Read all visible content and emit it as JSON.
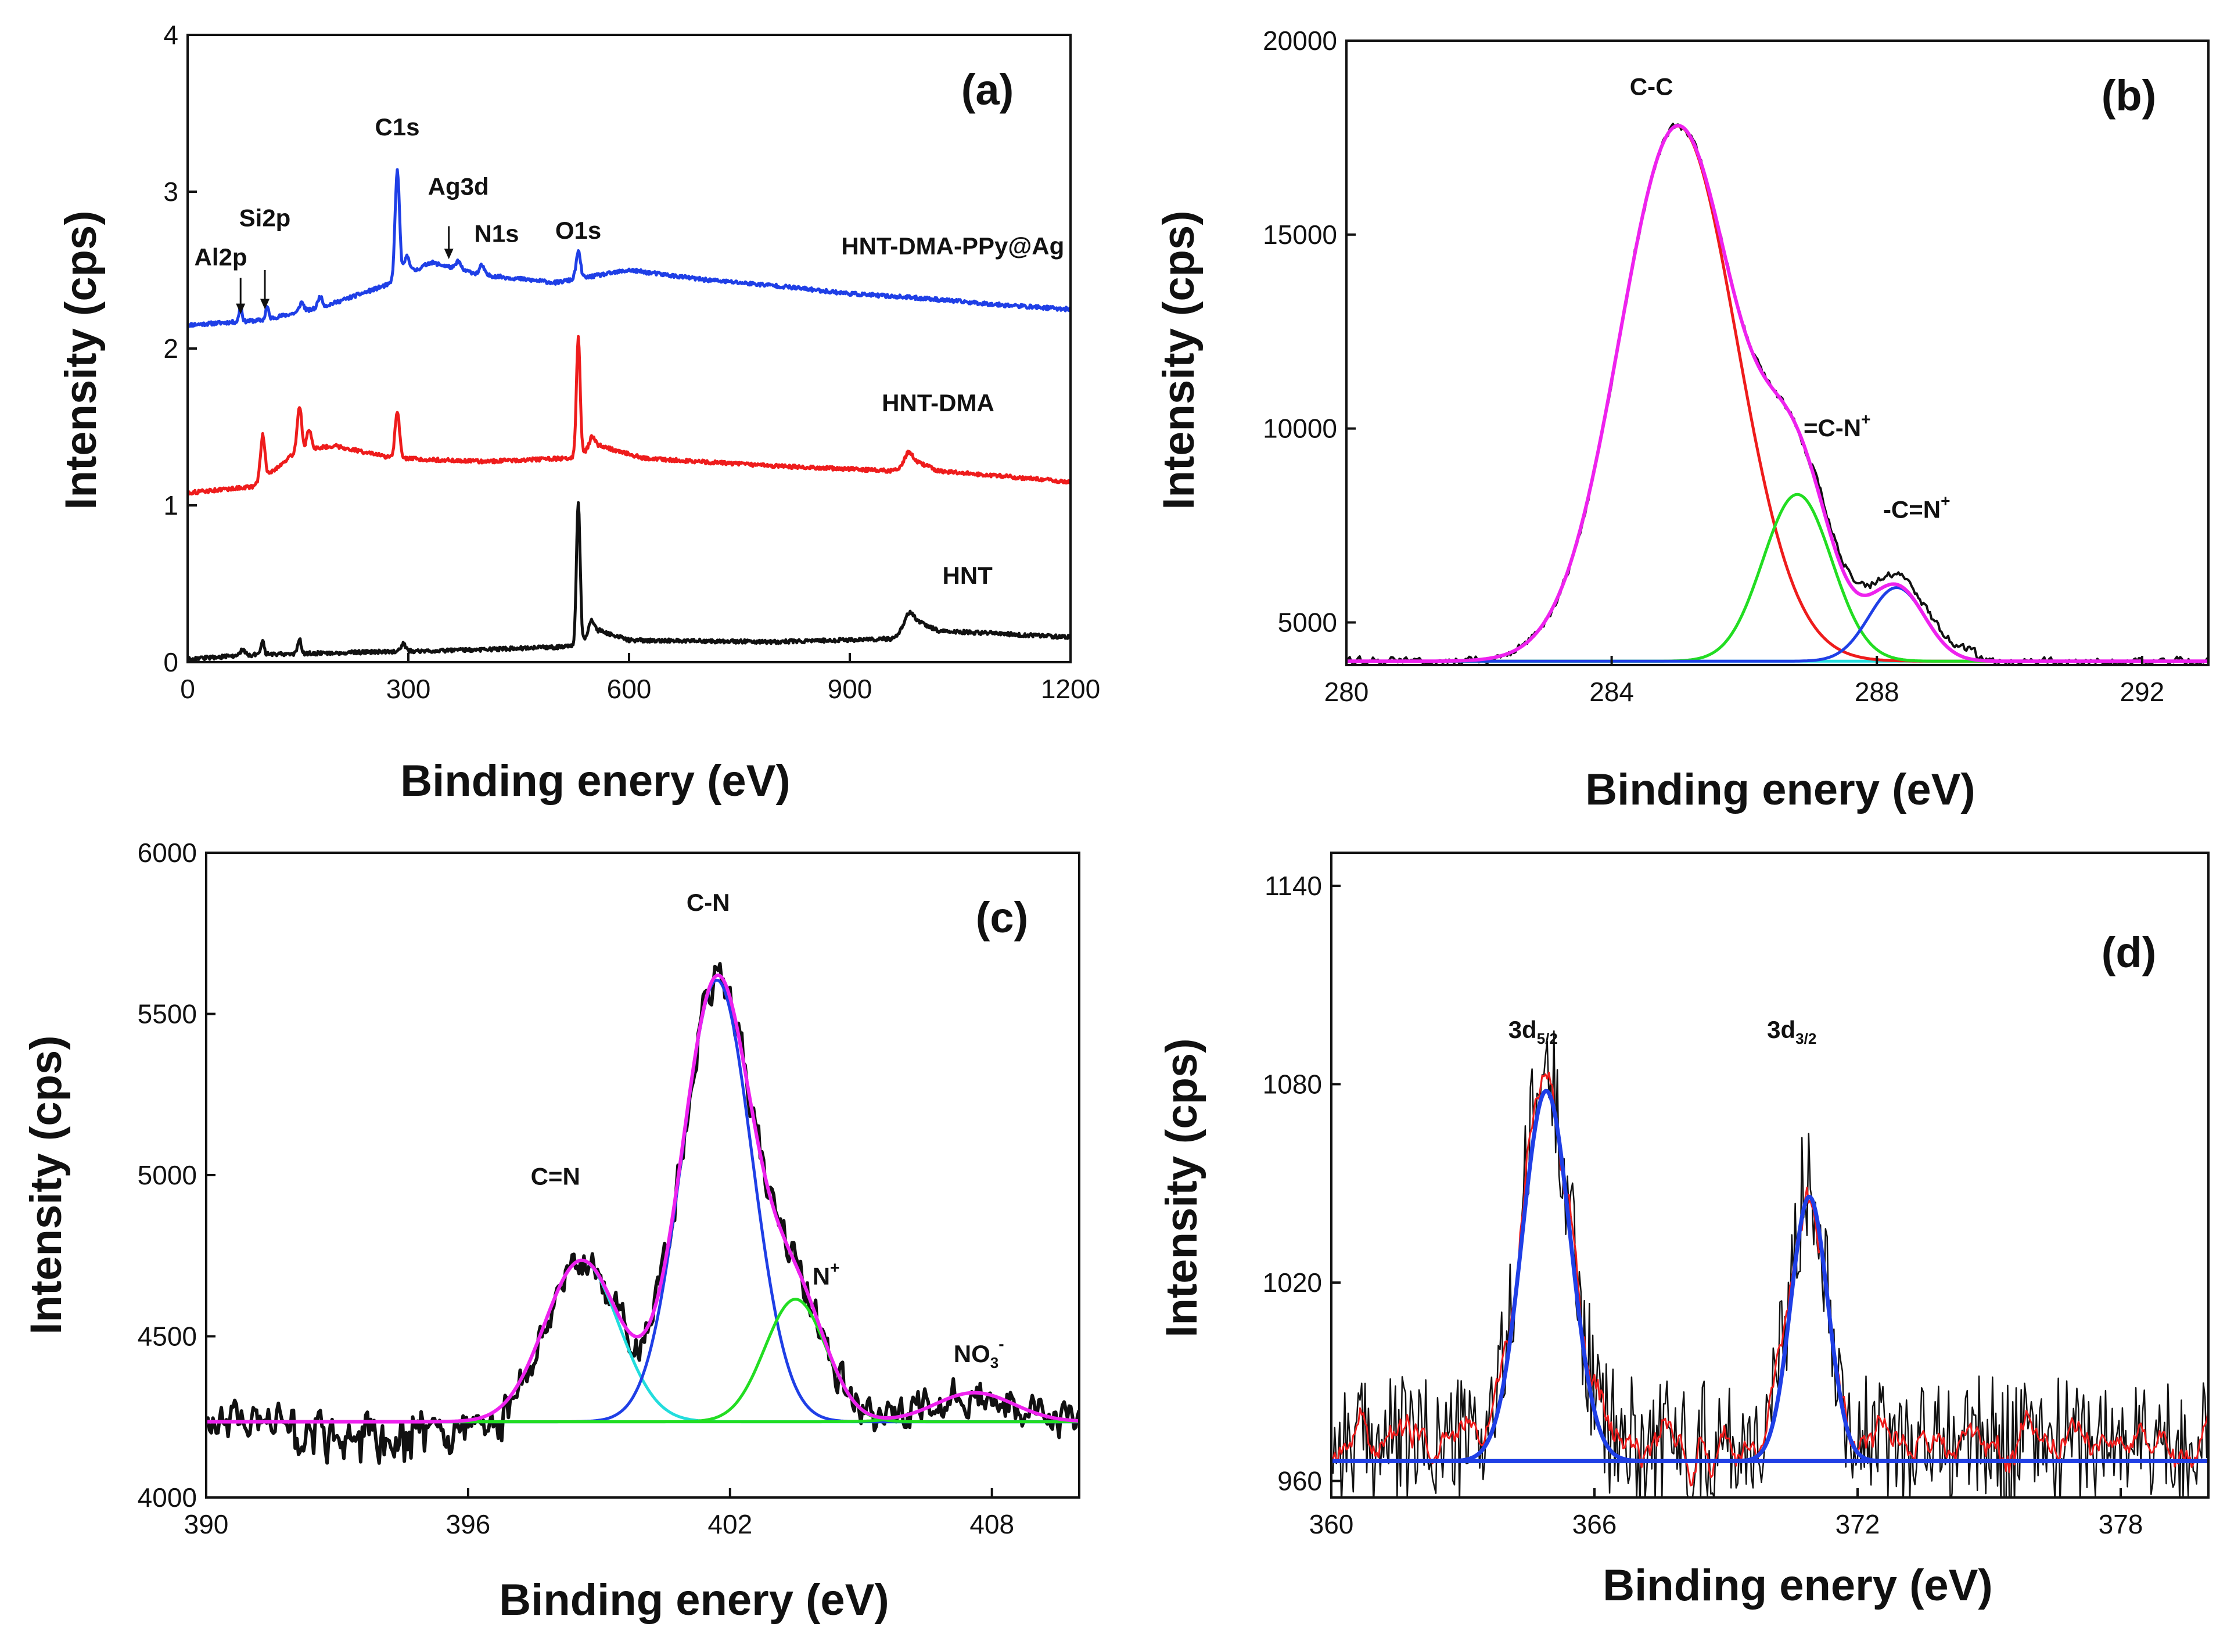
{
  "chart_data": [
    {
      "id": "a",
      "type": "line",
      "panel_label": "(a)",
      "xlabel": "Binding enery (eV)",
      "ylabel": "Intensity (cps)",
      "xlim": [
        0,
        1200
      ],
      "ylim": [
        0,
        4
      ],
      "xticks": [
        0,
        300,
        600,
        900,
        1200
      ],
      "xtick_labels": [
        "0",
        "300",
        "600",
        "900",
        "1200"
      ],
      "yticks": [
        0,
        1,
        2,
        3,
        4
      ],
      "ytick_labels": [
        "0",
        "1",
        "2",
        "3",
        "4"
      ],
      "series": [
        {
          "name": "HNT-DMA-PPy@Ag",
          "color": "#1f3fe6",
          "baseline": [
            [
              0,
              2.15
            ],
            [
              100,
              2.18
            ],
            [
              180,
              2.26
            ],
            [
              280,
              2.42
            ],
            [
              330,
              2.55
            ],
            [
              400,
              2.47
            ],
            [
              500,
              2.42
            ],
            [
              600,
              2.5
            ],
            [
              700,
              2.44
            ],
            [
              800,
              2.4
            ],
            [
              900,
              2.35
            ],
            [
              1000,
              2.32
            ],
            [
              1100,
              2.28
            ],
            [
              1200,
              2.25
            ]
          ],
          "peaks": [
            [
              72,
              0.1,
              2
            ],
            [
              108,
              0.08,
              2
            ],
            [
              155,
              0.06,
              3
            ],
            [
              180,
              0.07,
              3
            ],
            [
              285,
              0.7,
              3
            ],
            [
              298,
              0.12,
              4
            ],
            [
              368,
              0.05,
              3
            ],
            [
              400,
              0.06,
              3
            ],
            [
              531,
              0.17,
              3
            ]
          ],
          "noise": 0.012
        },
        {
          "name": "HNT-DMA",
          "color": "#ee1c1c",
          "baseline": [
            [
              0,
              1.08
            ],
            [
              90,
              1.12
            ],
            [
              150,
              1.35
            ],
            [
              200,
              1.38
            ],
            [
              280,
              1.3
            ],
            [
              400,
              1.28
            ],
            [
              520,
              1.3
            ],
            [
              560,
              1.38
            ],
            [
              620,
              1.3
            ],
            [
              800,
              1.25
            ],
            [
              960,
              1.22
            ],
            [
              990,
              1.28
            ],
            [
              1020,
              1.22
            ],
            [
              1200,
              1.15
            ]
          ],
          "peaks": [
            [
              102,
              0.28,
              3
            ],
            [
              152,
              0.28,
              3
            ],
            [
              165,
              0.12,
              3
            ],
            [
              285,
              0.3,
              3
            ],
            [
              531,
              0.75,
              2.5
            ],
            [
              550,
              0.08,
              4
            ],
            [
              980,
              0.08,
              5
            ]
          ],
          "noise": 0.012
        },
        {
          "name": "HNT",
          "color": "#111111",
          "baseline": [
            [
              0,
              0.02
            ],
            [
              100,
              0.05
            ],
            [
              200,
              0.06
            ],
            [
              400,
              0.08
            ],
            [
              525,
              0.1
            ],
            [
              560,
              0.2
            ],
            [
              600,
              0.14
            ],
            [
              800,
              0.13
            ],
            [
              960,
              0.15
            ],
            [
              985,
              0.28
            ],
            [
              1020,
              0.2
            ],
            [
              1200,
              0.16
            ]
          ],
          "peaks": [
            [
              75,
              0.04,
              3
            ],
            [
              102,
              0.08,
              2
            ],
            [
              152,
              0.1,
              2
            ],
            [
              293,
              0.05,
              3
            ],
            [
              531,
              0.9,
              2.5
            ],
            [
              549,
              0.1,
              4
            ],
            [
              980,
              0.06,
              5
            ]
          ],
          "noise": 0.012
        }
      ],
      "annotations": [
        {
          "text": "C1s",
          "x": 285,
          "y": 3.36
        },
        {
          "text": "O1s",
          "x": 531,
          "y": 2.7
        },
        {
          "text": "Ag3d",
          "x": 368,
          "y": 2.98
        },
        {
          "text": "N1s",
          "x": 420,
          "y": 2.68
        },
        {
          "text": "Si2p",
          "x": 105,
          "y": 2.78
        },
        {
          "text": "Al2p",
          "x": 45,
          "y": 2.53
        },
        {
          "text": "HNT-DMA-PPy@Ag",
          "x": 1040,
          "y": 2.6
        },
        {
          "text": "HNT-DMA",
          "x": 1020,
          "y": 1.6
        },
        {
          "text": "HNT",
          "x": 1060,
          "y": 0.5
        }
      ],
      "arrows": [
        {
          "x": 72,
          "y_from": 2.45,
          "y_to": 2.22
        },
        {
          "x": 105,
          "y_from": 2.5,
          "y_to": 2.25
        },
        {
          "x": 355,
          "y_from": 2.78,
          "y_to": 2.57
        }
      ]
    },
    {
      "id": "b",
      "type": "line",
      "panel_label": "(b)",
      "xlabel": "Binding enery (eV)",
      "ylabel": "Intensity (cps)",
      "xlim": [
        280,
        293
      ],
      "ylim": [
        3900,
        20000
      ],
      "xticks": [
        280,
        284,
        288,
        292
      ],
      "xtick_labels": [
        "280",
        "284",
        "288",
        "292"
      ],
      "yticks": [
        5000,
        10000,
        15000,
        20000
      ],
      "ytick_labels": [
        "5000",
        "10000",
        "15000",
        "20000"
      ],
      "baseline_value": 4000,
      "components": [
        {
          "name": "C-C",
          "center": 285.0,
          "amplitude": 13800,
          "sigma": 0.88,
          "color": "#ee1c1c"
        },
        {
          "name": "=C-N+",
          "center": 286.8,
          "amplitude": 4300,
          "sigma": 0.52,
          "color": "#22dd22"
        },
        {
          "name": "-C=N+",
          "center": 288.3,
          "amplitude": 1900,
          "sigma": 0.42,
          "color": "#1f3fe6"
        }
      ],
      "baseline_color": "#22dddd",
      "envelope_color": "#ee22ee",
      "raw_color": "#111111",
      "raw_noise": 90,
      "annotations": [
        {
          "text": "C-C",
          "x": 284.6,
          "y": 18600
        },
        {
          "text": "=C-N",
          "sup": "+",
          "x": 287.4,
          "y": 9800
        },
        {
          "text": "-C=N",
          "sup": "+",
          "x": 288.6,
          "y": 7700
        }
      ]
    },
    {
      "id": "c",
      "type": "line",
      "panel_label": "(c)",
      "xlabel": "Binding enery (eV)",
      "ylabel": "Intensity (cps)",
      "xlim": [
        390,
        410
      ],
      "ylim": [
        4000,
        6000
      ],
      "xticks": [
        390,
        396,
        402,
        408
      ],
      "xtick_labels": [
        "390",
        "396",
        "402",
        "408"
      ],
      "yticks": [
        4000,
        4500,
        5000,
        5500,
        6000
      ],
      "ytick_labels": [
        "4000",
        "4500",
        "5000",
        "5500",
        "6000"
      ],
      "baseline_value": 4235,
      "components": [
        {
          "name": "C=N",
          "center": 398.6,
          "amplitude": 500,
          "sigma": 0.85,
          "color": "#22dddd"
        },
        {
          "name": "C-N",
          "center": 401.7,
          "amplitude": 1370,
          "sigma": 0.8,
          "color": "#1f3fe6"
        },
        {
          "name": "N+",
          "center": 403.5,
          "amplitude": 380,
          "sigma": 0.7,
          "color": "#22dd22"
        },
        {
          "name": "NO3-",
          "center": 407.6,
          "amplitude": 90,
          "sigma": 0.9,
          "color": "#22dd22"
        }
      ],
      "baseline_color": "#22dddd",
      "envelope_color": "#ee22ee",
      "raw_color": "#111111",
      "raw_noise": 50,
      "annotations": [
        {
          "text": "C=N",
          "x": 398.0,
          "y": 4970
        },
        {
          "text": "C-N",
          "x": 401.5,
          "y": 5820
        },
        {
          "text": "N",
          "sup": "+",
          "x": 404.2,
          "y": 4660
        },
        {
          "text": "NO",
          "sub": "3",
          "sup": "-",
          "x": 407.7,
          "y": 4420
        }
      ]
    },
    {
      "id": "d",
      "type": "line",
      "panel_label": "(d)",
      "xlabel": "Binding enery (eV)",
      "ylabel": "Intensity (cps)",
      "xlim": [
        360,
        380
      ],
      "ylim": [
        955,
        1150
      ],
      "xticks": [
        360,
        366,
        372,
        378
      ],
      "xtick_labels": [
        "360",
        "366",
        "372",
        "378"
      ],
      "yticks": [
        960,
        1020,
        1080,
        1140
      ],
      "ytick_labels": [
        "960",
        "1020",
        "1080",
        "1140"
      ],
      "baseline_value": 966,
      "components": [
        {
          "name": "3d5/2",
          "center": 364.9,
          "amplitude": 112,
          "sigma": 0.55,
          "color": "#1f3fe6"
        },
        {
          "name": "3d3/2",
          "center": 370.9,
          "amplitude": 80,
          "sigma": 0.42,
          "color": "#1f3fe6"
        }
      ],
      "baseline_segments": [
        {
          "from": 363.0,
          "to": 366.8,
          "color": "#22dd22"
        },
        {
          "from": 369.5,
          "to": 372.3,
          "color": "#ee1c1c"
        }
      ],
      "baseline_color": "#1f3fe6",
      "envelope_color": "#1f3fe6",
      "raw_color": "#111111",
      "smoothed_color": "#ee1c1c",
      "raw_noise": 18,
      "annotations": [
        {
          "text": "3d",
          "sub": "5/2",
          "x": 364.6,
          "y": 1094
        },
        {
          "text": "3d",
          "sub": "3/2",
          "x": 370.5,
          "y": 1094
        }
      ]
    }
  ]
}
